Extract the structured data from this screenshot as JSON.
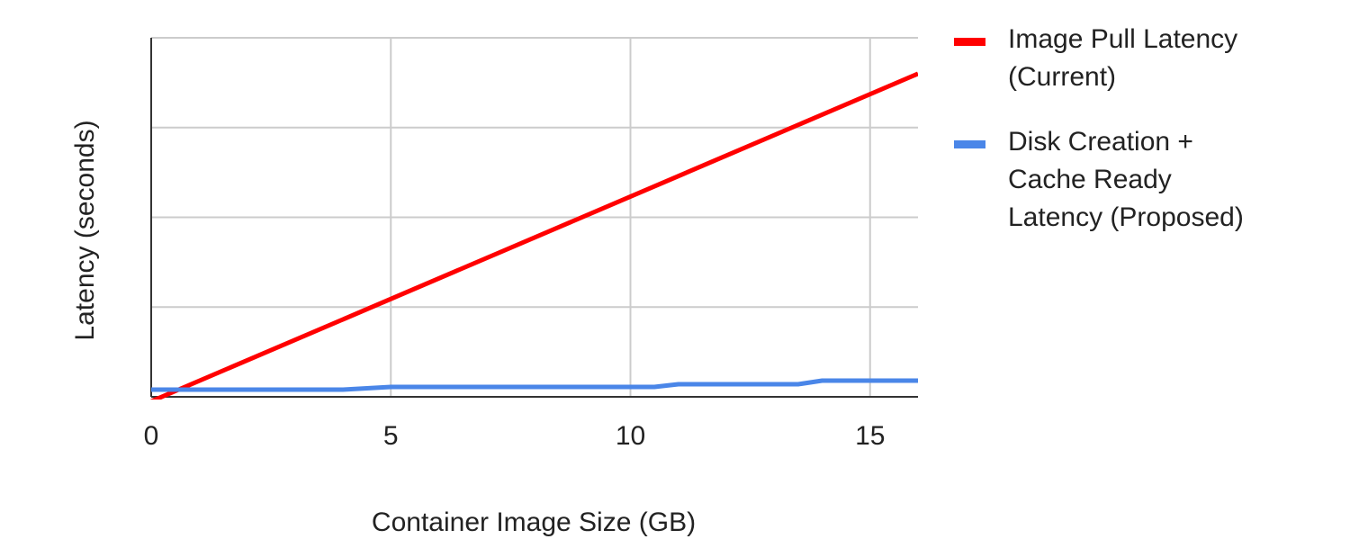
{
  "chart_data": {
    "type": "line",
    "title": "",
    "xlabel": "Container Image Size (GB)",
    "ylabel": "Latency (seconds)",
    "xlim": [
      0,
      16
    ],
    "ylim": [
      0,
      4
    ],
    "x_ticks": [
      0,
      5,
      10,
      15
    ],
    "y_ticks": [
      0,
      1,
      2,
      3,
      4
    ],
    "y_tick_labels_visible": false,
    "grid": true,
    "legend_position": "right",
    "series": [
      {
        "name": "Image Pull Latency (Current)",
        "legend_lines": [
          "Image Pull Latency",
          "(Current)"
        ],
        "color": "#ff0000",
        "x": [
          0,
          16
        ],
        "y": [
          -0.05,
          3.6
        ]
      },
      {
        "name": "Disk Creation + Cache Ready Latency (Proposed)",
        "legend_lines": [
          "Disk Creation +",
          "Cache Ready",
          "Latency (Proposed)"
        ],
        "color": "#4a86e8",
        "x": [
          0,
          4,
          5,
          6,
          7,
          8,
          9,
          10,
          10.5,
          11,
          12,
          13,
          13.5,
          14,
          15,
          16
        ],
        "y": [
          0.08,
          0.08,
          0.11,
          0.11,
          0.11,
          0.11,
          0.11,
          0.11,
          0.11,
          0.14,
          0.14,
          0.14,
          0.14,
          0.18,
          0.18,
          0.18
        ]
      }
    ]
  }
}
